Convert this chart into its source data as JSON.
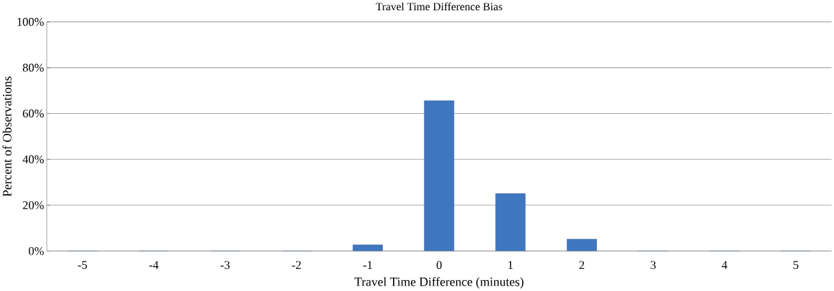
{
  "chart_data": {
    "type": "bar",
    "title": "Travel Time Difference Bias",
    "xlabel": "Travel Time Difference (minutes)",
    "ylabel": "Percent of Observations",
    "categories": [
      "-5",
      "-4",
      "-3",
      "-2",
      "-1",
      "0",
      "1",
      "2",
      "3",
      "4",
      "5"
    ],
    "values": [
      0,
      0,
      0,
      0,
      2.7,
      65.6,
      25.1,
      5.2,
      0,
      0,
      0
    ],
    "color": "#3f76c0",
    "ylim": [
      0,
      100
    ],
    "yticks": [
      {
        "value": 0,
        "label": "0%"
      },
      {
        "value": 20,
        "label": "20%"
      },
      {
        "value": 40,
        "label": "40%"
      },
      {
        "value": 60,
        "label": "60%"
      },
      {
        "value": 80,
        "label": "80%"
      },
      {
        "value": 100,
        "label": "100%"
      }
    ],
    "grid": "y"
  }
}
